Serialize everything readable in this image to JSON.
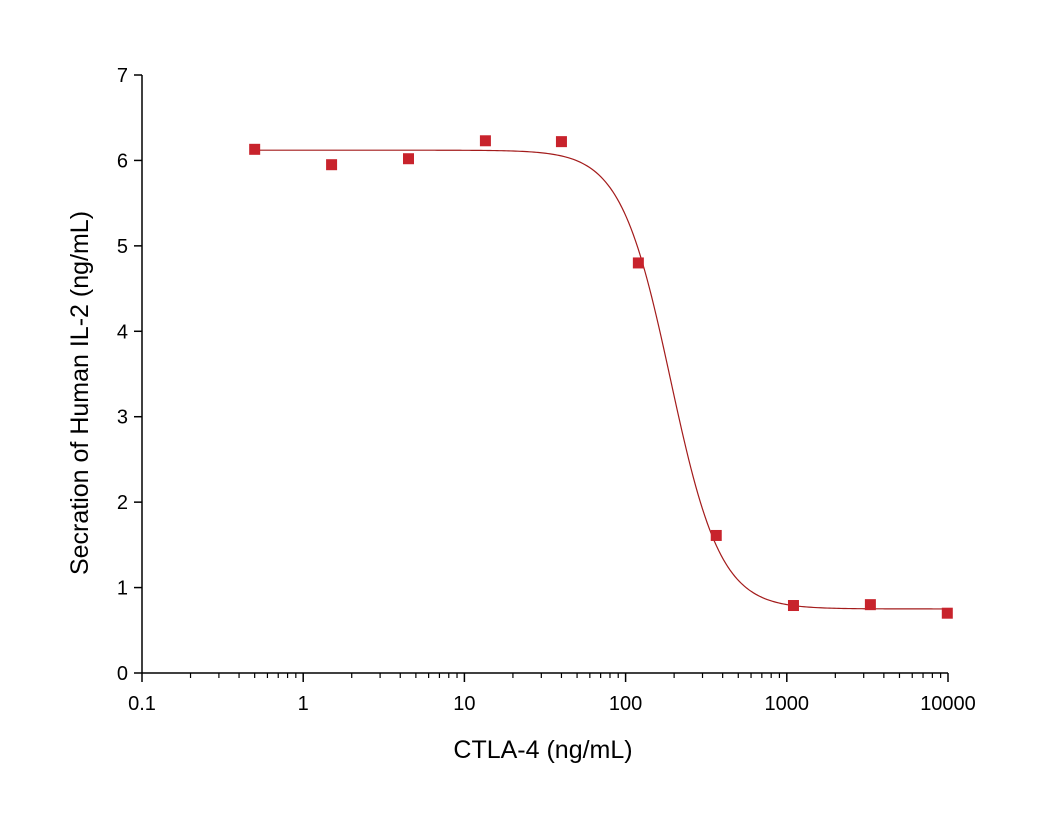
{
  "chart_data": {
    "type": "scatter",
    "title": "",
    "xlabel": "CTLA-4 (ng/mL)",
    "ylabel": "Secration of Human IL-2 (ng/mL)",
    "x_scale": "log",
    "xlim": [
      0.1,
      10000
    ],
    "ylim": [
      0,
      7
    ],
    "x_ticks": [
      0.1,
      1,
      10,
      100,
      1000,
      10000
    ],
    "x_tick_labels": [
      "0.1",
      "1",
      "10",
      "100",
      "1000",
      "10000"
    ],
    "y_ticks": [
      0,
      1,
      2,
      3,
      4,
      5,
      6,
      7
    ],
    "y_tick_labels": [
      "0",
      "1",
      "2",
      "3",
      "4",
      "5",
      "6",
      "7"
    ],
    "grid": false,
    "legend": "none",
    "series": [
      {
        "marker": "square",
        "color": "#c8232c",
        "points": [
          {
            "x": 0.5,
            "y": 6.13
          },
          {
            "x": 1.5,
            "y": 5.95
          },
          {
            "x": 4.5,
            "y": 6.02
          },
          {
            "x": 13.5,
            "y": 6.23
          },
          {
            "x": 40,
            "y": 6.22
          },
          {
            "x": 120,
            "y": 4.8
          },
          {
            "x": 365,
            "y": 1.61
          },
          {
            "x": 1100,
            "y": 0.79
          },
          {
            "x": 3300,
            "y": 0.8
          },
          {
            "x": 9900,
            "y": 0.7
          }
        ]
      }
    ],
    "fit_curve": {
      "type": "4PL",
      "color": "#a31b1b",
      "top": 6.12,
      "bottom": 0.75,
      "ec50": 190,
      "hill": 2.8
    }
  }
}
